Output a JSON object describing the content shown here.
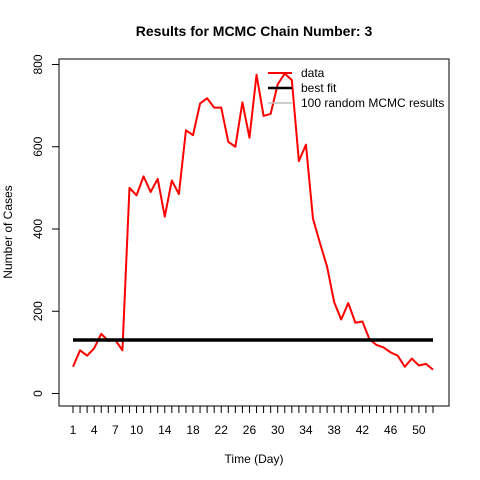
{
  "chart_data": {
    "type": "line",
    "title": "Results for MCMC Chain Number: 3",
    "xlabel": "Time (Day)",
    "ylabel": "Number of Cases",
    "xlim": [
      1,
      52
    ],
    "ylim": [
      0,
      800
    ],
    "x_tick_labels": [
      "1",
      "4",
      "7",
      "10",
      "14",
      "18",
      "22",
      "26",
      "30",
      "34",
      "38",
      "42",
      "46",
      "50"
    ],
    "y_tick_labels": [
      "0",
      "200",
      "400",
      "600",
      "800"
    ],
    "legend_position": "top-right",
    "series": [
      {
        "name": "data",
        "color": "#ff0000",
        "x": [
          1,
          2,
          3,
          4,
          5,
          6,
          7,
          8,
          9,
          10,
          11,
          12,
          13,
          14,
          15,
          16,
          17,
          18,
          19,
          20,
          21,
          22,
          23,
          24,
          25,
          26,
          27,
          28,
          29,
          30,
          31,
          32,
          33,
          34,
          35,
          36,
          37,
          38,
          39,
          40,
          41,
          42,
          43,
          44,
          45,
          46,
          47,
          48,
          49,
          50,
          51,
          52
        ],
        "values": [
          65,
          105,
          92,
          110,
          145,
          128,
          130,
          105,
          500,
          482,
          528,
          490,
          522,
          430,
          518,
          485,
          640,
          628,
          705,
          718,
          695,
          695,
          612,
          600,
          708,
          622,
          775,
          675,
          680,
          752,
          778,
          762,
          565,
          605,
          425,
          365,
          308,
          222,
          180,
          220,
          172,
          175,
          132,
          118,
          112,
          100,
          92,
          65,
          85,
          68,
          72,
          58
        ]
      },
      {
        "name": "best fit",
        "color": "#000000",
        "x": [
          1,
          52
        ],
        "values": [
          130,
          130
        ]
      },
      {
        "name": "100 random MCMC results",
        "color": "#bebebe",
        "x": [],
        "values": []
      }
    ]
  }
}
